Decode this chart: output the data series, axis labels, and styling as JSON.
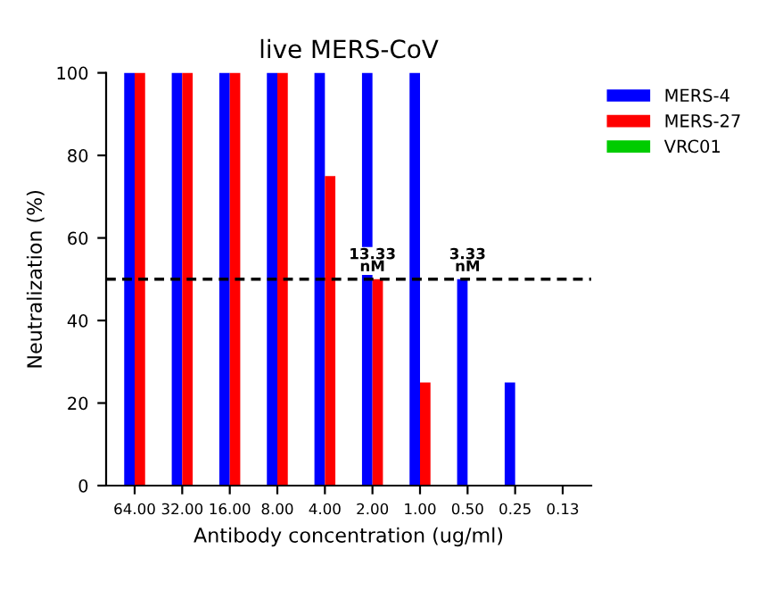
{
  "chart_data": {
    "type": "bar",
    "title": "live MERS-CoV",
    "xlabel": "Antibody concentration (ug/ml)",
    "ylabel": "Neutralization (%)",
    "categories": [
      "64.00",
      "32.00",
      "16.00",
      "8.00",
      "4.00",
      "2.00",
      "1.00",
      "0.50",
      "0.25",
      "0.13"
    ],
    "series": [
      {
        "name": "MERS-4",
        "color": "#0000ff",
        "values": [
          100,
          100,
          100,
          100,
          100,
          100,
          100,
          50,
          25,
          0
        ]
      },
      {
        "name": "MERS-27",
        "color": "#ff0000",
        "values": [
          100,
          100,
          100,
          100,
          75,
          50,
          25,
          0,
          0,
          0
        ]
      },
      {
        "name": "VRC01",
        "color": "#00cc00",
        "values": [
          0,
          0,
          0,
          0,
          0,
          0,
          0,
          0,
          0,
          0
        ]
      }
    ],
    "ylim": [
      0,
      100
    ],
    "yticks": [
      0,
      20,
      40,
      60,
      80,
      100
    ],
    "ref_lines": [
      {
        "axis": "y",
        "value": 50,
        "color": "#000000",
        "line_style": "dashed"
      }
    ],
    "annotations": [
      {
        "text": "13.33\nnM",
        "x": "2.00",
        "y": 50
      },
      {
        "text": "3.33\nnM",
        "x": "0.50",
        "y": 50
      }
    ],
    "legend": "top right",
    "grid": false
  }
}
